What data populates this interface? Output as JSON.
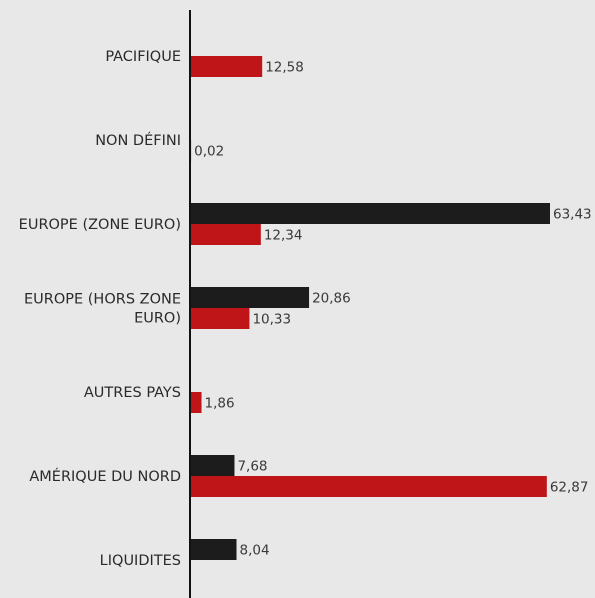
{
  "chart_data": {
    "type": "bar",
    "orientation": "horizontal",
    "categories": [
      "PACIFIQUE",
      "NON DÉFINI",
      "EUROPE (ZONE EURO)",
      "EUROPE (HORS ZONE EURO)",
      "AUTRES PAYS",
      "AMÉRIQUE DU NORD",
      "LIQUIDITES"
    ],
    "category_lines": [
      [
        "PACIFIQUE"
      ],
      [
        "NON DÉFINI"
      ],
      [
        "EUROPE (ZONE EURO)"
      ],
      [
        "EUROPE (HORS ZONE",
        "EURO)"
      ],
      [
        "AUTRES PAYS"
      ],
      [
        "AMÉRIQUE DU NORD"
      ],
      [
        "LIQUIDITES"
      ]
    ],
    "series": [
      {
        "color": "#1c1c1c",
        "values": [
          null,
          null,
          63.43,
          20.86,
          null,
          7.68,
          8.04
        ],
        "labels": [
          null,
          null,
          "63,43",
          "20,86",
          null,
          "7,68",
          "8,04"
        ]
      },
      {
        "color": "#c01518",
        "values": [
          12.58,
          0.02,
          12.34,
          10.33,
          1.86,
          62.87,
          null
        ],
        "labels": [
          "12,58",
          "0,02",
          "12,34",
          "10,33",
          "1,86",
          "62,87",
          null
        ]
      }
    ],
    "xlim": [
      0,
      63.43
    ],
    "grid": false,
    "legend": "none",
    "title": "",
    "xlabel": "",
    "ylabel": ""
  },
  "colors": {
    "background": "#e8e8e8",
    "axis": "#111111"
  }
}
